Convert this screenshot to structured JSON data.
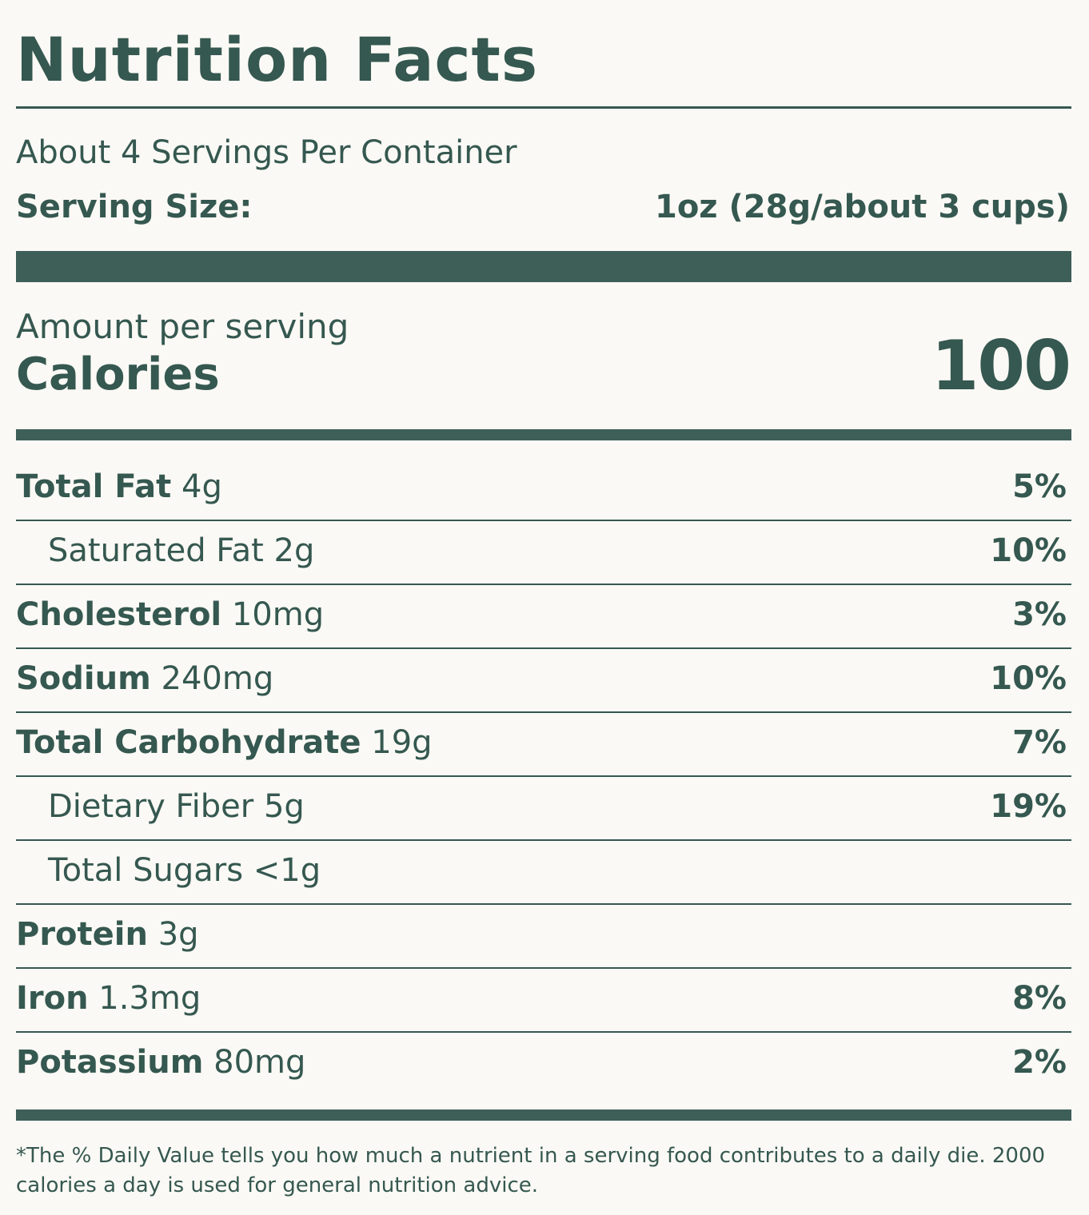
{
  "title": "Nutrition Facts",
  "servings": "About 4 Servings Per Container",
  "serving_size": {
    "label": "Serving Size:",
    "value": "1oz (28g/about 3 cups)"
  },
  "amount_per_serving": "Amount per serving",
  "calories": {
    "label": "Calories",
    "value": "100"
  },
  "rows": [
    {
      "name": "Total Fat",
      "amount": "4g",
      "dv": "5%"
    },
    {
      "name": "Saturated Fat",
      "amount": "2g",
      "dv": "10%"
    },
    {
      "name": "Cholesterol",
      "amount": "10mg",
      "dv": "3%"
    },
    {
      "name": "Sodium",
      "amount": "240mg",
      "dv": "10%"
    },
    {
      "name": "Total Carbohydrate",
      "amount": "19g",
      "dv": "7%"
    },
    {
      "name": "Dietary Fiber",
      "amount": "5g",
      "dv": "19%"
    },
    {
      "name": "Total Sugars",
      "amount": "<1g"
    },
    {
      "name": "Protein",
      "amount": "3g"
    },
    {
      "name": "Iron",
      "amount": "1.3mg",
      "dv": "8%"
    },
    {
      "name": "Potassium",
      "amount": "80mg",
      "dv": "2%"
    }
  ],
  "footnote": "*The % Daily Value tells you how much a nutrient in a serving food contributes to a daily die. 2000 calories a day is used for general nutrition advice."
}
